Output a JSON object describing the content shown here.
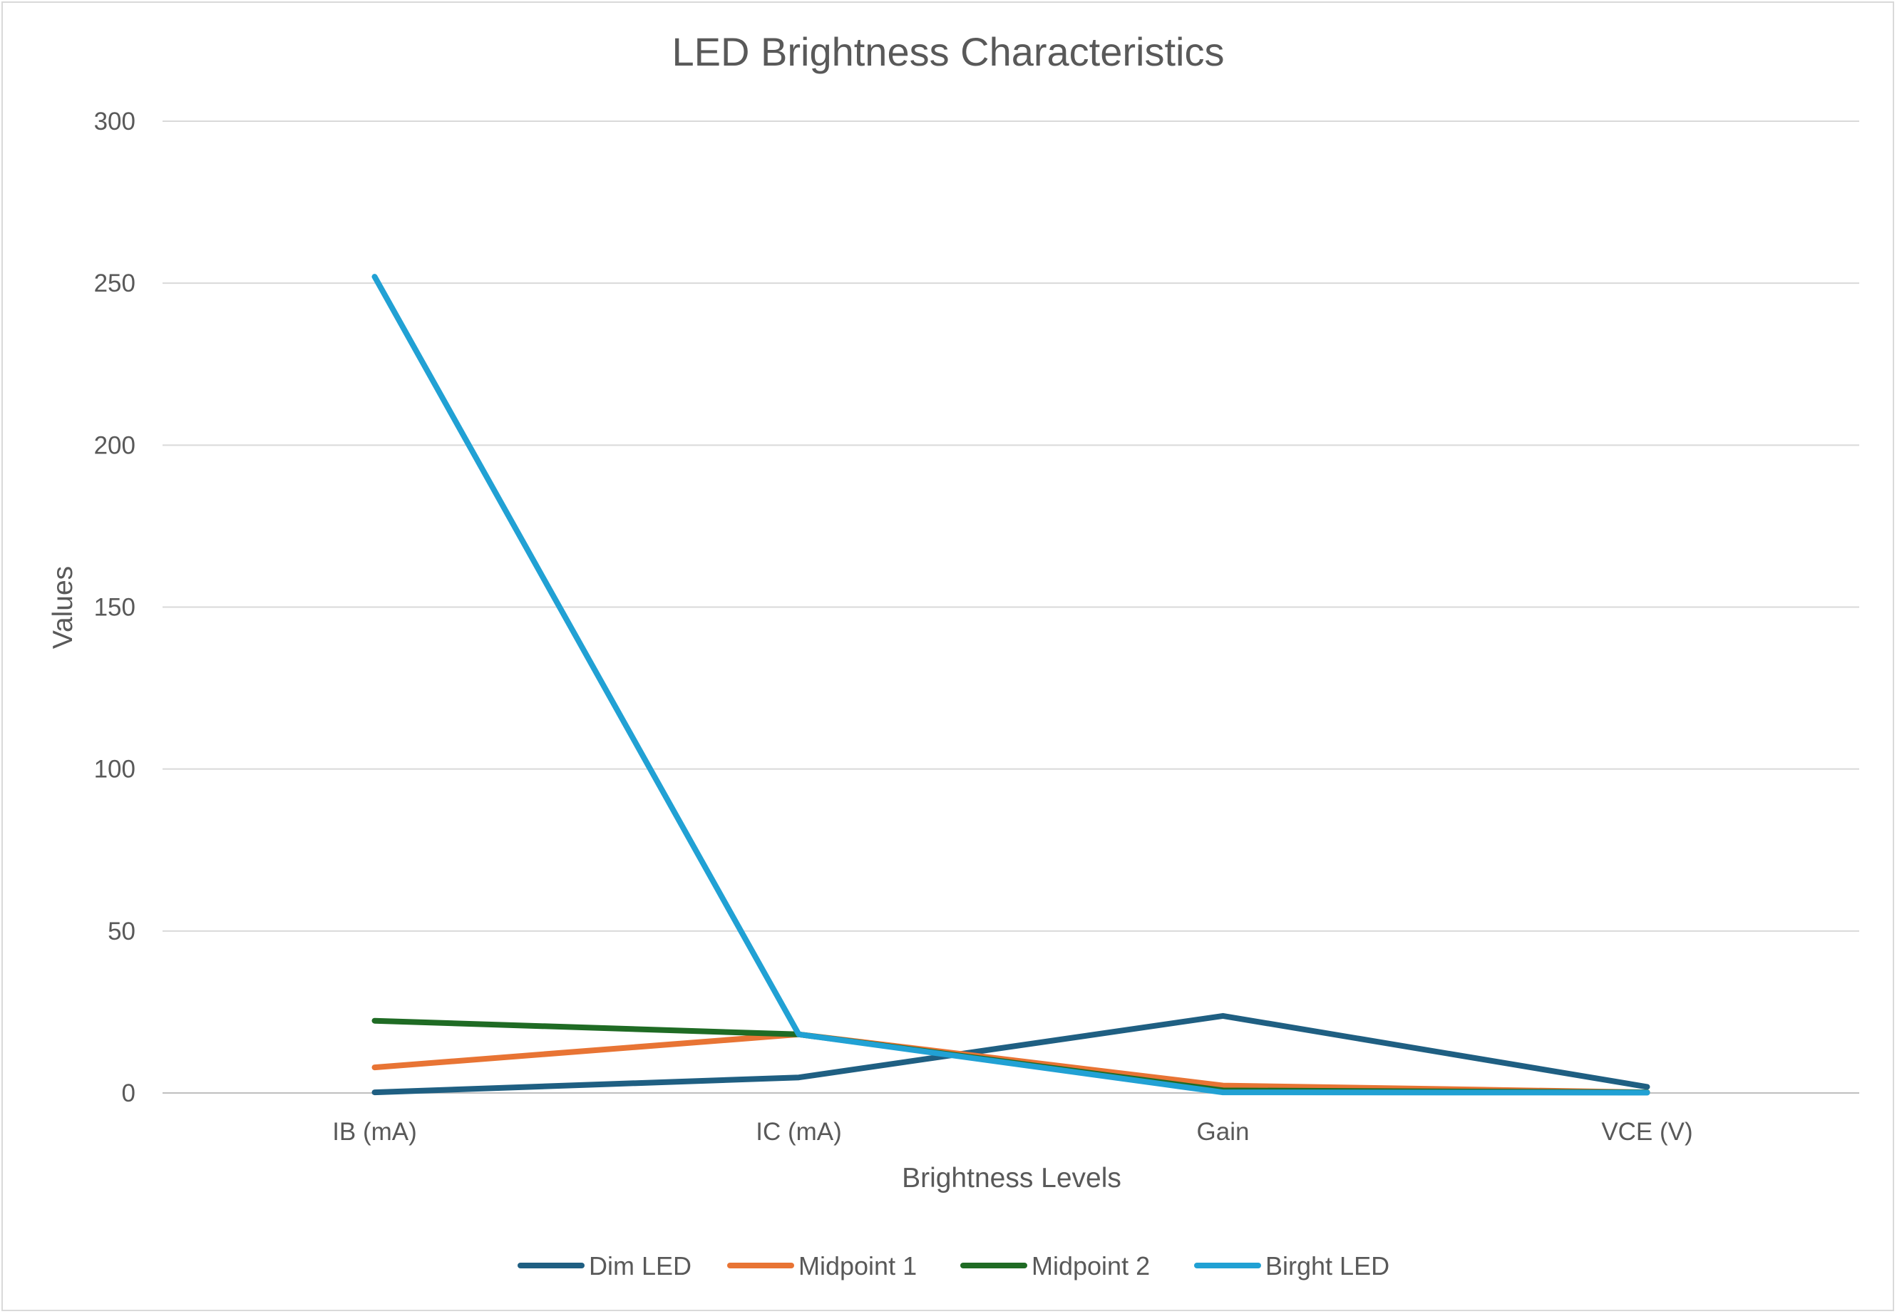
{
  "chart_data": {
    "type": "line",
    "title": "LED Brightness Characteristics",
    "xlabel": "Brightness Levels",
    "ylabel": "Values",
    "categories": [
      "IB (mA)",
      "IC (mA)",
      "Gain",
      "VCE (V)"
    ],
    "ylim": [
      0,
      300
    ],
    "yticks": [
      0,
      50,
      100,
      150,
      200,
      250,
      300
    ],
    "grid": true,
    "legend_position": "bottom",
    "series": [
      {
        "name": "Dim LED",
        "color": "#1f5f82",
        "values": [
          0.2,
          4.8,
          23.8,
          1.9
        ]
      },
      {
        "name": "Midpoint 1",
        "color": "#e87434",
        "values": [
          7.9,
          18.1,
          2.3,
          0.2
        ]
      },
      {
        "name": "Midpoint 2",
        "color": "#1f6b24",
        "values": [
          22.3,
          18.1,
          0.8,
          0.2
        ]
      },
      {
        "name": "Birght LED",
        "color": "#21a1d4",
        "values": [
          252,
          18.1,
          0.2,
          0.1
        ]
      }
    ]
  }
}
